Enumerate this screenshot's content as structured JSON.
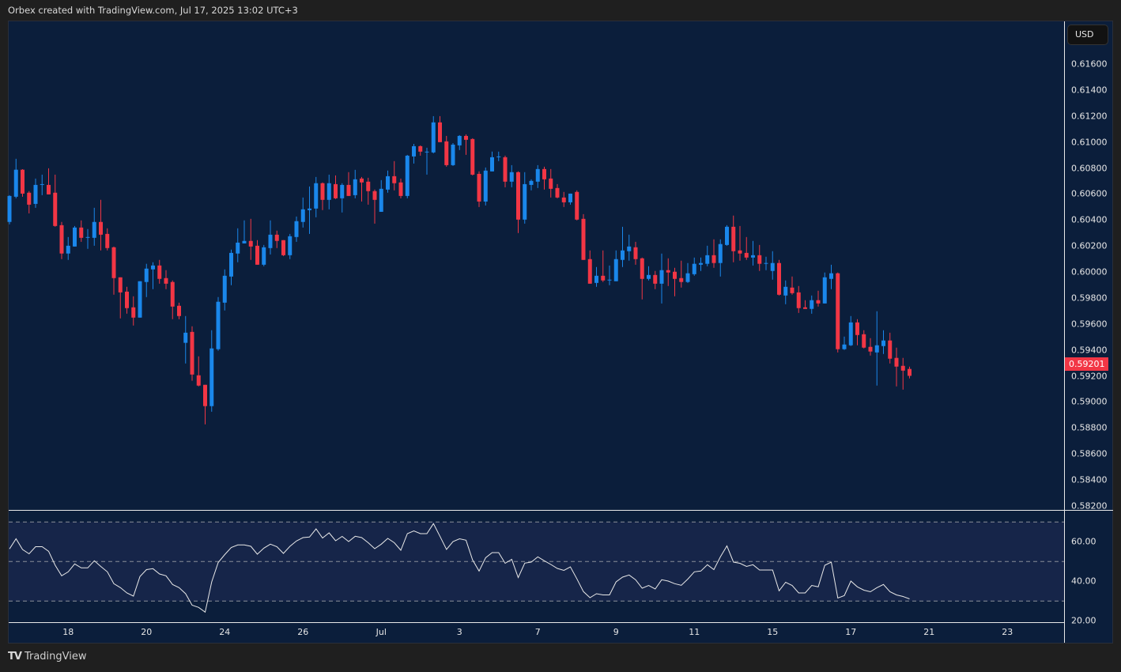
{
  "header": {
    "title": "Orbex created with TradingView.com, Jul 17, 2025 13:02 UTC+3"
  },
  "footer": {
    "brand": "TradingView",
    "logo_mark": "TV"
  },
  "axis": {
    "currency_button": "USD",
    "last_price_label": "0.59201"
  },
  "colors": {
    "up": "#1a87eb",
    "down": "#f23645",
    "background": "#0b1e3b",
    "rsi_band": "#162549",
    "rsi_line": "#e8e8e8"
  },
  "chart_data": {
    "type": "candlestick",
    "title": "",
    "price_ticks": [
      "0.61600",
      "0.61400",
      "0.61200",
      "0.61000",
      "0.60800",
      "0.60600",
      "0.60400",
      "0.60200",
      "0.60000",
      "0.59800",
      "0.59600",
      "0.59400",
      "0.59200",
      "0.59000",
      "0.58800",
      "0.58600",
      "0.58400",
      "0.58200"
    ],
    "ylim": [
      0.582,
      0.616
    ],
    "time_labels": [
      {
        "label": "18",
        "bar": 9
      },
      {
        "label": "20",
        "bar": 21
      },
      {
        "label": "24",
        "bar": 33
      },
      {
        "label": "26",
        "bar": 45
      },
      {
        "label": "Jul",
        "bar": 57
      },
      {
        "label": "3",
        "bar": 69
      },
      {
        "label": "7",
        "bar": 81
      },
      {
        "label": "9",
        "bar": 93
      },
      {
        "label": "11",
        "bar": 105
      },
      {
        "label": "15",
        "bar": 117
      },
      {
        "label": "17",
        "bar": 129
      },
      {
        "label": "21",
        "bar": 141
      },
      {
        "label": "23",
        "bar": 153
      }
    ],
    "last_price": 0.59201,
    "candles_ohlc": [
      [
        0.60385,
        0.60591,
        0.60367,
        0.60585
      ],
      [
        0.60579,
        0.60871,
        0.60567,
        0.60787
      ],
      [
        0.60787,
        0.60791,
        0.60579,
        0.60603
      ],
      [
        0.6061,
        0.60622,
        0.60451,
        0.60518
      ],
      [
        0.60524,
        0.60719,
        0.60494,
        0.6067
      ],
      [
        0.60676,
        0.60749,
        0.60591,
        0.60676
      ],
      [
        0.6067,
        0.60798,
        0.60597,
        0.60597
      ],
      [
        0.6061,
        0.60749,
        0.60348,
        0.60354
      ],
      [
        0.6036,
        0.60385,
        0.60099,
        0.60142
      ],
      [
        0.60142,
        0.60269,
        0.60093,
        0.60202
      ],
      [
        0.60196,
        0.60354,
        0.60196,
        0.60342
      ],
      [
        0.60342,
        0.60397,
        0.60232,
        0.60263
      ],
      [
        0.60263,
        0.6033,
        0.60178,
        0.60269
      ],
      [
        0.60263,
        0.60494,
        0.60202,
        0.60385
      ],
      [
        0.60385,
        0.60555,
        0.60166,
        0.60287
      ],
      [
        0.60293,
        0.60336,
        0.60166,
        0.60184
      ],
      [
        0.6019,
        0.60196,
        0.59825,
        0.59953
      ],
      [
        0.59959,
        0.59959,
        0.59643,
        0.59843
      ],
      [
        0.59849,
        0.59886,
        0.59679,
        0.59722
      ],
      [
        0.59728,
        0.59813,
        0.59588,
        0.59649
      ],
      [
        0.59649,
        0.59929,
        0.59649,
        0.59929
      ],
      [
        0.59923,
        0.60063,
        0.59807,
        0.60026
      ],
      [
        0.6002,
        0.60075,
        0.59868,
        0.6005
      ],
      [
        0.6005,
        0.60093,
        0.5991,
        0.59947
      ],
      [
        0.59953,
        0.60014,
        0.59868,
        0.5991
      ],
      [
        0.59923,
        0.59935,
        0.59637,
        0.59734
      ],
      [
        0.5974,
        0.59764,
        0.59637,
        0.59661
      ],
      [
        0.59455,
        0.59661,
        0.59296,
        0.59533
      ],
      [
        0.59539,
        0.59582,
        0.59163,
        0.59211
      ],
      [
        0.59205,
        0.59351,
        0.5912,
        0.59126
      ],
      [
        0.59132,
        0.59132,
        0.58828,
        0.58968
      ],
      [
        0.58968,
        0.59552,
        0.58925,
        0.59412
      ],
      [
        0.59406,
        0.59807,
        0.59394,
        0.59771
      ],
      [
        0.59764,
        0.6002,
        0.59704,
        0.59971
      ],
      [
        0.59965,
        0.60172,
        0.59898,
        0.60147
      ],
      [
        0.60142,
        0.60336,
        0.60075,
        0.60226
      ],
      [
        0.6022,
        0.60397,
        0.6022,
        0.60239
      ],
      [
        0.60239,
        0.60409,
        0.60093,
        0.60196
      ],
      [
        0.60202,
        0.60245,
        0.60056,
        0.60056
      ],
      [
        0.60056,
        0.60208,
        0.60044,
        0.6019
      ],
      [
        0.60184,
        0.60397,
        0.60135,
        0.60287
      ],
      [
        0.60287,
        0.60318,
        0.60184,
        0.60239
      ],
      [
        0.60245,
        0.60245,
        0.60123,
        0.60129
      ],
      [
        0.60129,
        0.60293,
        0.60099,
        0.60275
      ],
      [
        0.60269,
        0.60427,
        0.60232,
        0.60391
      ],
      [
        0.60385,
        0.60573,
        0.60342,
        0.60482
      ],
      [
        0.60476,
        0.60658,
        0.60293,
        0.60488
      ],
      [
        0.60488,
        0.60731,
        0.60421,
        0.60683
      ],
      [
        0.60683,
        0.60689,
        0.60476,
        0.60555
      ],
      [
        0.60555,
        0.60749,
        0.60482,
        0.60683
      ],
      [
        0.60676,
        0.60743,
        0.60561,
        0.60567
      ],
      [
        0.60567,
        0.60683,
        0.60458,
        0.6067
      ],
      [
        0.6067,
        0.60768,
        0.60585,
        0.60585
      ],
      [
        0.60591,
        0.60786,
        0.60567,
        0.60713
      ],
      [
        0.60719,
        0.60731,
        0.60542,
        0.60689
      ],
      [
        0.60695,
        0.60725,
        0.60518,
        0.60622
      ],
      [
        0.60622,
        0.60634,
        0.60372,
        0.60555
      ],
      [
        0.60463,
        0.60707,
        0.60463,
        0.6064
      ],
      [
        0.60634,
        0.6078,
        0.6061,
        0.60737
      ],
      [
        0.60737,
        0.60853,
        0.60628,
        0.60683
      ],
      [
        0.60689,
        0.60719,
        0.60567,
        0.60585
      ],
      [
        0.60585,
        0.60901,
        0.60567,
        0.60895
      ],
      [
        0.60889,
        0.60986,
        0.60834,
        0.60968
      ],
      [
        0.60968,
        0.60974,
        0.60895,
        0.60926
      ],
      [
        0.60926,
        0.60956,
        0.60749,
        0.60926
      ],
      [
        0.6092,
        0.61199,
        0.60913,
        0.61151
      ],
      [
        0.61151,
        0.61199,
        0.60999,
        0.60999
      ],
      [
        0.61005,
        0.61047,
        0.6081,
        0.60822
      ],
      [
        0.60822,
        0.60992,
        0.60816,
        0.6098
      ],
      [
        0.60974,
        0.61053,
        0.60938,
        0.61047
      ],
      [
        0.61047,
        0.61059,
        0.60901,
        0.61017
      ],
      [
        0.61023,
        0.61029,
        0.60743,
        0.60749
      ],
      [
        0.60755,
        0.60774,
        0.605,
        0.60542
      ],
      [
        0.60542,
        0.60804,
        0.60512,
        0.6078
      ],
      [
        0.60774,
        0.60926,
        0.60774,
        0.60883
      ],
      [
        0.60889,
        0.60926,
        0.60853,
        0.60889
      ],
      [
        0.60883,
        0.60895,
        0.60652,
        0.60695
      ],
      [
        0.60695,
        0.60822,
        0.60652,
        0.60768
      ],
      [
        0.60768,
        0.60774,
        0.603,
        0.60403
      ],
      [
        0.60403,
        0.60768,
        0.60372,
        0.60676
      ],
      [
        0.6067,
        0.60713,
        0.60628,
        0.60701
      ],
      [
        0.60695,
        0.60822,
        0.60646,
        0.60792
      ],
      [
        0.60792,
        0.6081,
        0.60634,
        0.60713
      ],
      [
        0.60719,
        0.60792,
        0.60573,
        0.6064
      ],
      [
        0.60646,
        0.60676,
        0.60567,
        0.60573
      ],
      [
        0.60573,
        0.60616,
        0.605,
        0.60536
      ],
      [
        0.60536,
        0.60603,
        0.60518,
        0.60603
      ],
      [
        0.60616,
        0.60628,
        0.60397,
        0.60403
      ],
      [
        0.60409,
        0.60445,
        0.60093,
        0.60093
      ],
      [
        0.60099,
        0.60166,
        0.5991,
        0.5991
      ],
      [
        0.59916,
        0.60038,
        0.59886,
        0.59971
      ],
      [
        0.59971,
        0.60166,
        0.59923,
        0.59935
      ],
      [
        0.59941,
        0.6005,
        0.59898,
        0.59941
      ],
      [
        0.59929,
        0.60166,
        0.59929,
        0.60099
      ],
      [
        0.60093,
        0.60348,
        0.60038,
        0.60166
      ],
      [
        0.6016,
        0.60287,
        0.60087,
        0.60196
      ],
      [
        0.6019,
        0.60232,
        0.60056,
        0.60099
      ],
      [
        0.60105,
        0.60111,
        0.59789,
        0.59947
      ],
      [
        0.59947,
        0.60044,
        0.59935,
        0.59977
      ],
      [
        0.59977,
        0.60008,
        0.59868,
        0.5991
      ],
      [
        0.5991,
        0.60142,
        0.59758,
        0.60014
      ],
      [
        0.60014,
        0.60105,
        0.59892,
        0.59996
      ],
      [
        0.60002,
        0.60032,
        0.59813,
        0.59947
      ],
      [
        0.59953,
        0.60087,
        0.5988,
        0.59923
      ],
      [
        0.59923,
        0.60069,
        0.59916,
        0.5999
      ],
      [
        0.59983,
        0.60111,
        0.59971,
        0.60063
      ],
      [
        0.60056,
        0.60111,
        0.60008,
        0.60069
      ],
      [
        0.60063,
        0.60202,
        0.60044,
        0.60129
      ],
      [
        0.60129,
        0.60251,
        0.60032,
        0.60069
      ],
      [
        0.60069,
        0.60251,
        0.59965,
        0.60215
      ],
      [
        0.60208,
        0.6036,
        0.60202,
        0.60348
      ],
      [
        0.60348,
        0.60434,
        0.60075,
        0.6016
      ],
      [
        0.60166,
        0.60354,
        0.60087,
        0.60142
      ],
      [
        0.60147,
        0.60269,
        0.60093,
        0.60111
      ],
      [
        0.60111,
        0.60239,
        0.6005,
        0.60129
      ],
      [
        0.60129,
        0.60208,
        0.60008,
        0.60063
      ],
      [
        0.60069,
        0.60117,
        0.60014,
        0.60069
      ],
      [
        0.60008,
        0.6016,
        0.59941,
        0.60069
      ],
      [
        0.60069,
        0.60093,
        0.59819,
        0.59825
      ],
      [
        0.59819,
        0.59935,
        0.59752,
        0.59886
      ],
      [
        0.5988,
        0.59965,
        0.59825,
        0.59837
      ],
      [
        0.59843,
        0.59892,
        0.59685,
        0.59722
      ],
      [
        0.59728,
        0.59783,
        0.59716,
        0.59716
      ],
      [
        0.59716,
        0.59819,
        0.59679,
        0.59783
      ],
      [
        0.59783,
        0.59856,
        0.59734,
        0.59758
      ],
      [
        0.59758,
        0.59996,
        0.59758,
        0.59959
      ],
      [
        0.59947,
        0.60056,
        0.59868,
        0.5999
      ],
      [
        0.5999,
        0.59996,
        0.59381,
        0.59406
      ],
      [
        0.59406,
        0.59503,
        0.594,
        0.59442
      ],
      [
        0.59436,
        0.59661,
        0.5943,
        0.59612
      ],
      [
        0.59612,
        0.59637,
        0.59436,
        0.59515
      ],
      [
        0.59521,
        0.59552,
        0.59412,
        0.59418
      ],
      [
        0.59424,
        0.59491,
        0.59357,
        0.59388
      ],
      [
        0.59381,
        0.59698,
        0.59126,
        0.59436
      ],
      [
        0.5943,
        0.59552,
        0.59369,
        0.59473
      ],
      [
        0.59473,
        0.59533,
        0.59296,
        0.59333
      ],
      [
        0.59339,
        0.59418,
        0.5912,
        0.59272
      ],
      [
        0.59278,
        0.59339,
        0.59095,
        0.59241
      ],
      [
        0.59254,
        0.59272,
        0.59181,
        0.59201
      ]
    ],
    "rsi": {
      "ticks": [
        "60.00",
        "40.00",
        "20.00"
      ],
      "levels": [
        70,
        50,
        30
      ],
      "ylim": [
        20,
        75
      ],
      "values": [
        56.4,
        61.5,
        56.1,
        53.9,
        57.5,
        57.5,
        55.2,
        48.1,
        42.8,
        44.8,
        48.8,
        46.8,
        46.8,
        50.4,
        47.5,
        44.8,
        38.8,
        36.8,
        34.1,
        32.5,
        42.4,
        45.9,
        46.4,
        43.7,
        42.8,
        38.4,
        36.8,
        33.7,
        27.9,
        26.8,
        24.4,
        39.7,
        49.5,
        53.5,
        57.1,
        58.4,
        58.4,
        57.7,
        53.7,
        56.8,
        58.8,
        57.5,
        54.1,
        57.7,
        60.4,
        62.1,
        62.4,
        66.5,
        61.9,
        64.5,
        60.5,
        62.7,
        60.1,
        62.8,
        62.1,
        59.5,
        56.5,
        58.8,
        61.7,
        59.5,
        55.7,
        64.1,
        65.5,
        64.1,
        64.1,
        69.2,
        62.8,
        56.1,
        60.1,
        61.5,
        60.8,
        50.8,
        45.2,
        51.9,
        54.5,
        54.5,
        49.1,
        51.1,
        41.9,
        49.2,
        49.7,
        52.4,
        50.4,
        48.5,
        46.5,
        45.5,
        47.3,
        41.2,
        34.8,
        31.7,
        33.7,
        33.1,
        33.1,
        39.7,
        42.1,
        43.2,
        40.8,
        36.5,
        37.9,
        36.1,
        40.8,
        40.1,
        38.8,
        38.0,
        41.1,
        44.8,
        45.2,
        48.4,
        45.9,
        52.4,
        57.9,
        49.7,
        49.1,
        47.5,
        48.4,
        45.7,
        45.7,
        45.7,
        35.2,
        39.5,
        37.9,
        34.1,
        34.1,
        37.9,
        37.2,
        48.1,
        49.7,
        31.5,
        32.8,
        40.1,
        37.2,
        35.5,
        34.7,
        36.8,
        38.4,
        34.7,
        33.1,
        32.3,
        31.1
      ]
    }
  }
}
